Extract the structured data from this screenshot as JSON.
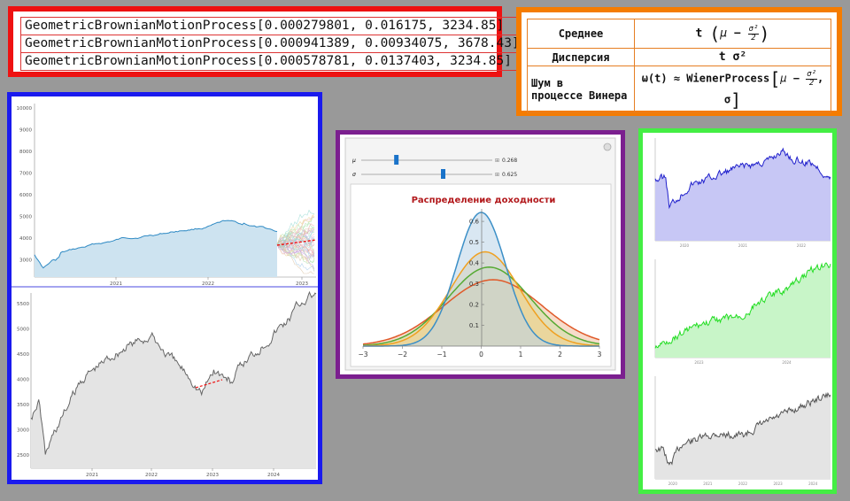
{
  "gbm_lines": [
    "GeometricBrownianMotionProcess[0.000279801, 0.016175, 3234.85]",
    "GeometricBrownianMotionProcess[0.000941389, 0.00934075, 3678.43]",
    "GeometricBrownianMotionProcess[0.000578781, 0.0137403, 3234.85]"
  ],
  "stats": {
    "mean_label": "Среднее",
    "variance_label": "Дисперсия",
    "noise_label_1": "Шум в",
    "noise_label_2": "процессе Винера",
    "t": "t",
    "mu": "μ",
    "minus": "−",
    "sigma": "σ",
    "sigma2": "σ²",
    "two": "2",
    "variance_expr": "t σ²",
    "noise_prefix": "ω(t) ≈ WienerProcess",
    "noise_tail": ", σ"
  },
  "sp_top": {
    "y_ticks": [
      "10000",
      "9000",
      "8000",
      "7000",
      "6000",
      "5000",
      "4000",
      "3000"
    ],
    "x_ticks": [
      "2021",
      "2022",
      "2023"
    ]
  },
  "sp_bottom": {
    "y_ticks": [
      "5500",
      "5000",
      "4500",
      "4000",
      "3500",
      "3000",
      "2500"
    ],
    "x_ticks": [
      "2021",
      "2022",
      "2023",
      "2024"
    ]
  },
  "manipulate": {
    "mu_label": "μ",
    "sigma_label": "σ",
    "mu_value": "0.268",
    "sigma_value": "0.625",
    "mu_fraction": 0.268,
    "sigma_fraction": 0.625,
    "plus_symbol": "⊞"
  },
  "chart_data": {
    "type": "area",
    "title": "Распределение доходности",
    "x_ticks": [
      "−3",
      "−2",
      "−1",
      "0",
      "1",
      "2",
      "3"
    ],
    "y_ticks": [
      "0.1",
      "0.2",
      "0.3",
      "0.4",
      "0.5",
      "0.6"
    ],
    "xlim": [
      -3,
      3
    ],
    "ylim": [
      0,
      0.66
    ],
    "series": [
      {
        "mean": 0.0,
        "sd": 0.62,
        "color": "#3b8fc7",
        "fill": "#b9d4e8"
      },
      {
        "mean": 0.1,
        "sd": 0.88,
        "color": "#f0a020",
        "fill": "#f2cf88"
      },
      {
        "mean": 0.2,
        "sd": 1.05,
        "color": "#55aa33",
        "fill": "#cfe0a8"
      },
      {
        "mean": 0.3,
        "sd": 1.25,
        "color": "#e05a2a",
        "fill": "#f0c0a0"
      }
    ]
  },
  "green_charts": [
    {
      "x_ticks": [
        "2020",
        "2021",
        "2022"
      ],
      "color": "#2020cc",
      "fill": "#c7c7f5"
    },
    {
      "x_ticks": [
        "2023",
        "2024"
      ],
      "color": "#22dd22",
      "fill": "#c8f5c8"
    },
    {
      "x_ticks": [
        "2020",
        "2021",
        "2022",
        "2023",
        "2024"
      ],
      "color": "#555555",
      "fill": "#e4e4e4"
    }
  ]
}
